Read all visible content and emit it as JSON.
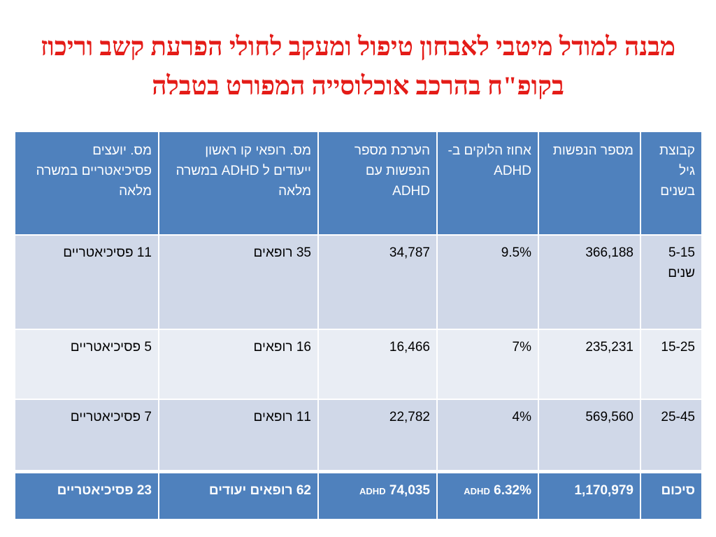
{
  "title": "מבנה למודל מיטבי לאבחון טיפול ומעקב לחולי הפרעת קשב וריכוז בקופ\"ח בהרכב אוכלוסייה המפורט בטבלה",
  "table": {
    "headers": [
      "קבוצת גיל בשנים",
      "מספר הנפשות",
      "אחוז הלוקים ב- ADHD",
      "הערכת מספר הנפשות עם ADHD",
      "מס. רופאי קו ראשון ייעודים ל ADHD במשרה מלאה",
      "מס. יועצים פסיכיאטריים במשרה מלאה"
    ],
    "rows": [
      {
        "age": "5-15 שנים",
        "population": "366,188",
        "percent": "9.5%",
        "estimate": "34,787",
        "doctors": "35 רופאים",
        "psychiatrists": "11 פסיכיאטריים"
      },
      {
        "age": "15-25",
        "population": "235,231",
        "percent": "7%",
        "estimate": "16,466",
        "doctors": "16 רופאים",
        "psychiatrists": "5  פסיכיאטריים"
      },
      {
        "age": "25-45",
        "population": "569,560",
        "percent": "4%",
        "estimate": "22,782",
        "doctors": "11 רופאים",
        "psychiatrists": "7 פסיכיאטריים"
      }
    ],
    "total": {
      "label": "סיכום",
      "population": "1,170,979",
      "percent": "6.32%",
      "percent_suffix": "ADHD",
      "estimate": "74,035",
      "estimate_suffix": "ADHD",
      "doctors": "62 רופאים יעודים",
      "psychiatrists": "23 פסיכיאטריים"
    }
  }
}
